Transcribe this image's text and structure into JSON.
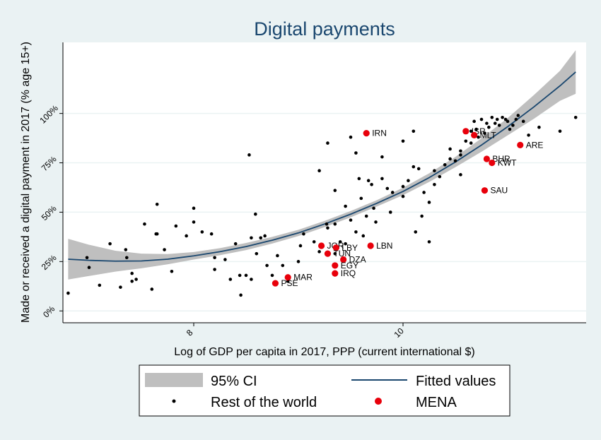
{
  "chart_data": {
    "type": "scatter",
    "title": "Digital payments",
    "xlabel": "Log of GDP per capita in 2017, PPP (current international $)",
    "ylabel": "Made or received a digital payment in 2017 (% age 15+)",
    "xlim": [
      6.75,
      11.75
    ],
    "ylim": [
      -0.06,
      1.36
    ],
    "x_ticks": [
      {
        "value": 8,
        "label": "8"
      },
      {
        "value": 10,
        "label": "10"
      }
    ],
    "y_ticks": [
      {
        "value": 0,
        "label": "0%"
      },
      {
        "value": 0.25,
        "label": "25%"
      },
      {
        "value": 0.5,
        "label": "50%"
      },
      {
        "value": 0.75,
        "label": "75%"
      },
      {
        "value": 1,
        "label": "100%"
      }
    ],
    "grid": true,
    "legend_position": "bottom",
    "legend": {
      "ci": "95% CI",
      "fitted": "Fitted values",
      "rest": "Rest of the world",
      "mena": "MENA"
    },
    "colors": {
      "background": "#eaf2f3",
      "plot_background": "#ffffff",
      "ci_band": "#bfbfbf",
      "fitted_line": "#1a476f",
      "rest_points": "#000000",
      "mena_points": "#e8000b",
      "grid": "#eaf2f3"
    },
    "fitted_values": {
      "x": [
        6.8,
        7.0,
        7.25,
        7.5,
        7.75,
        8.0,
        8.25,
        8.5,
        8.75,
        9.0,
        9.25,
        9.5,
        9.75,
        10.0,
        10.25,
        10.5,
        10.75,
        11.0,
        11.25,
        11.5,
        11.65
      ],
      "y": [
        0.262,
        0.256,
        0.252,
        0.253,
        0.262,
        0.279,
        0.3,
        0.326,
        0.358,
        0.395,
        0.44,
        0.49,
        0.545,
        0.605,
        0.675,
        0.754,
        0.84,
        0.933,
        1.033,
        1.14,
        1.21
      ],
      "ci_upper": [
        0.365,
        0.335,
        0.305,
        0.29,
        0.288,
        0.298,
        0.318,
        0.344,
        0.375,
        0.411,
        0.456,
        0.506,
        0.561,
        0.624,
        0.697,
        0.78,
        0.874,
        0.977,
        1.093,
        1.216,
        1.32
      ],
      "ci_lower": [
        0.159,
        0.177,
        0.199,
        0.216,
        0.236,
        0.26,
        0.282,
        0.308,
        0.341,
        0.379,
        0.424,
        0.474,
        0.529,
        0.586,
        0.653,
        0.728,
        0.806,
        0.889,
        0.973,
        1.064,
        1.1
      ]
    },
    "series": [
      {
        "name": "Rest of the world",
        "points": [
          [
            6.98,
            0.27
          ],
          [
            7.0,
            0.22
          ],
          [
            7.2,
            0.34
          ],
          [
            7.35,
            0.31
          ],
          [
            7.36,
            0.27
          ],
          [
            7.41,
            0.19
          ],
          [
            7.41,
            0.15
          ],
          [
            7.53,
            0.44
          ],
          [
            7.64,
            0.39
          ],
          [
            7.65,
            0.39
          ],
          [
            7.72,
            0.31
          ],
          [
            7.79,
            0.2
          ],
          [
            7.83,
            0.43
          ],
          [
            7.93,
            0.38
          ],
          [
            8.0,
            0.52
          ],
          [
            8.0,
            0.45
          ],
          [
            8.08,
            0.4
          ],
          [
            8.17,
            0.39
          ],
          [
            8.2,
            0.27
          ],
          [
            8.4,
            0.34
          ],
          [
            8.44,
            0.18
          ],
          [
            8.5,
            0.18
          ],
          [
            8.55,
            0.37
          ],
          [
            8.59,
            0.49
          ],
          [
            8.64,
            0.37
          ],
          [
            8.6,
            0.29
          ],
          [
            8.68,
            0.38
          ],
          [
            8.85,
            0.23
          ],
          [
            8.9,
            0.15
          ],
          [
            9.02,
            0.33
          ],
          [
            9.05,
            0.39
          ],
          [
            9.27,
            0.44
          ],
          [
            9.28,
            0.42
          ],
          [
            9.35,
            0.61
          ],
          [
            9.35,
            0.44
          ],
          [
            9.4,
            0.35
          ],
          [
            9.45,
            0.53
          ],
          [
            9.5,
            0.46
          ],
          [
            9.58,
            0.67
          ],
          [
            9.6,
            0.57
          ],
          [
            9.67,
            0.66
          ],
          [
            9.7,
            0.64
          ],
          [
            9.74,
            0.45
          ],
          [
            9.8,
            0.67
          ],
          [
            9.85,
            0.62
          ],
          [
            9.9,
            0.6
          ],
          [
            10.0,
            0.63
          ],
          [
            10.05,
            0.66
          ],
          [
            10.1,
            0.73
          ],
          [
            10.15,
            0.72
          ],
          [
            10.2,
            0.6
          ],
          [
            10.25,
            0.55
          ],
          [
            10.3,
            0.71
          ],
          [
            10.35,
            0.68
          ],
          [
            10.4,
            0.74
          ],
          [
            10.45,
            0.82
          ],
          [
            10.5,
            0.76
          ],
          [
            10.55,
            0.79
          ],
          [
            10.6,
            0.86
          ],
          [
            10.65,
            0.91
          ],
          [
            10.68,
            0.96
          ],
          [
            10.7,
            0.92
          ],
          [
            10.75,
            0.97
          ],
          [
            10.8,
            0.95
          ],
          [
            10.85,
            0.98
          ],
          [
            10.9,
            0.97
          ],
          [
            10.95,
            0.98
          ],
          [
            11.0,
            0.96
          ],
          [
            11.05,
            0.94
          ],
          [
            11.1,
            0.99
          ],
          [
            11.15,
            0.96
          ],
          [
            11.3,
            0.93
          ],
          [
            11.5,
            0.91
          ],
          [
            11.65,
            0.98
          ],
          [
            6.8,
            0.09
          ],
          [
            7.1,
            0.13
          ],
          [
            7.3,
            0.12
          ],
          [
            7.45,
            0.16
          ],
          [
            7.6,
            0.11
          ],
          [
            8.2,
            0.21
          ],
          [
            8.3,
            0.26
          ],
          [
            8.35,
            0.16
          ],
          [
            8.45,
            0.08
          ],
          [
            8.55,
            0.16
          ],
          [
            8.7,
            0.23
          ],
          [
            8.75,
            0.18
          ],
          [
            8.8,
            0.28
          ],
          [
            9.0,
            0.25
          ],
          [
            9.15,
            0.35
          ],
          [
            9.2,
            0.3
          ],
          [
            9.35,
            0.29
          ],
          [
            9.45,
            0.34
          ],
          [
            9.55,
            0.4
          ],
          [
            9.62,
            0.38
          ],
          [
            9.65,
            0.48
          ],
          [
            9.72,
            0.52
          ],
          [
            9.88,
            0.5
          ],
          [
            10.0,
            0.58
          ],
          [
            10.12,
            0.4
          ],
          [
            10.18,
            0.48
          ],
          [
            10.25,
            0.35
          ],
          [
            10.3,
            0.64
          ],
          [
            10.45,
            0.77
          ],
          [
            10.55,
            0.69
          ],
          [
            10.55,
            0.81
          ],
          [
            10.65,
            0.85
          ],
          [
            10.72,
            0.88
          ],
          [
            10.78,
            0.9
          ],
          [
            10.82,
            0.93
          ],
          [
            10.88,
            0.95
          ],
          [
            10.92,
            0.94
          ],
          [
            10.98,
            0.97
          ],
          [
            11.02,
            0.92
          ],
          [
            11.08,
            0.97
          ],
          [
            11.2,
            0.89
          ],
          [
            9.28,
            0.85
          ],
          [
            9.5,
            0.88
          ],
          [
            9.55,
            0.8
          ],
          [
            8.53,
            0.79
          ],
          [
            9.2,
            0.71
          ],
          [
            7.65,
            0.54
          ],
          [
            9.8,
            0.78
          ],
          [
            10.0,
            0.86
          ],
          [
            10.1,
            0.91
          ]
        ]
      },
      {
        "name": "MENA",
        "points": [
          {
            "label": "IRN",
            "x": 9.65,
            "y": 0.9
          },
          {
            "label": "ISR",
            "x": 10.6,
            "y": 0.91
          },
          {
            "label": "MLT",
            "x": 10.68,
            "y": 0.89
          },
          {
            "label": "ARE",
            "x": 11.12,
            "y": 0.84
          },
          {
            "label": "BHR",
            "x": 10.8,
            "y": 0.77
          },
          {
            "label": "KWT",
            "x": 10.85,
            "y": 0.75
          },
          {
            "label": "SAU",
            "x": 10.78,
            "y": 0.61
          },
          {
            "label": "LBN",
            "x": 9.69,
            "y": 0.33
          },
          {
            "label": "JOR",
            "x": 9.22,
            "y": 0.33
          },
          {
            "label": "LBY",
            "x": 9.36,
            "y": 0.32
          },
          {
            "label": "TUN",
            "x": 9.28,
            "y": 0.29
          },
          {
            "label": "DZA",
            "x": 9.43,
            "y": 0.26
          },
          {
            "label": "EGY",
            "x": 9.35,
            "y": 0.23
          },
          {
            "label": "IRQ",
            "x": 9.35,
            "y": 0.19
          },
          {
            "label": "MAR",
            "x": 8.9,
            "y": 0.17
          },
          {
            "label": "PSE",
            "x": 8.78,
            "y": 0.14
          }
        ]
      }
    ]
  }
}
